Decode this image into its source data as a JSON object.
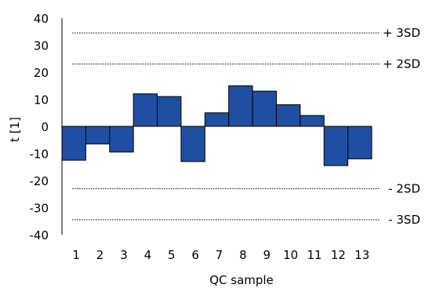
{
  "chart_data": {
    "type": "bar",
    "categories": [
      "1",
      "2",
      "3",
      "4",
      "5",
      "6",
      "7",
      "8",
      "9",
      "10",
      "11",
      "12",
      "13"
    ],
    "values": [
      -12.5,
      -6.5,
      -9.5,
      12,
      11,
      -13,
      5,
      15,
      13,
      8,
      4,
      -14.5,
      -12
    ],
    "xlabel": "QC sample",
    "ylabel": "t [1]",
    "ylim": [
      -40,
      40
    ],
    "yticks": [
      40,
      30,
      20,
      10,
      0,
      -10,
      -20,
      -30,
      -40
    ],
    "bar_color": "#1f4ea3",
    "reference_lines": [
      {
        "label": "+ 3SD",
        "value": 34.5
      },
      {
        "label": "+ 2SD",
        "value": 23
      },
      {
        "label": "- 2SD",
        "value": -23
      },
      {
        "label": "- 3SD",
        "value": -34.5
      }
    ],
    "grid": false,
    "legend": "none"
  }
}
